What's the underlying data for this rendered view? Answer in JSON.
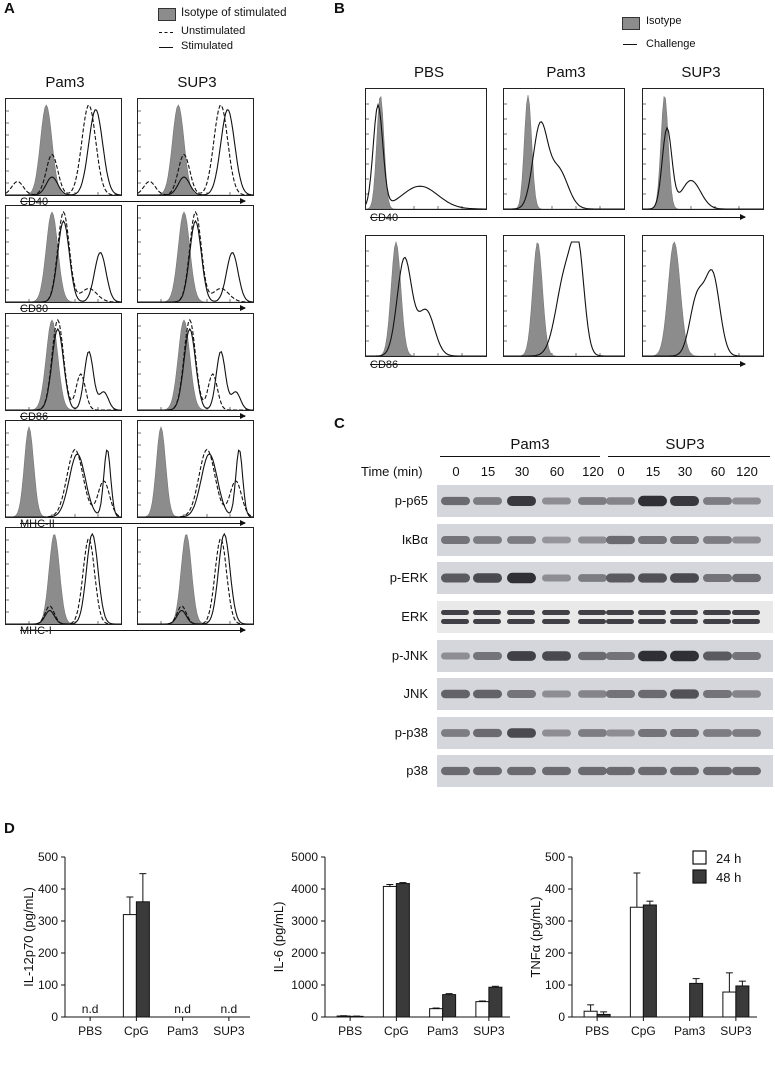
{
  "panel_letters": {
    "A": "A",
    "B": "B",
    "C": "C",
    "D": "D"
  },
  "panel_a": {
    "legend": {
      "isotype": "Isotype of stimulated",
      "unstimulated": "Unstimulated",
      "stimulated": "Stimulated"
    },
    "columns": [
      "Pam3",
      "SUP3"
    ],
    "markers": [
      "CD40",
      "CD80",
      "CD86",
      "MHC-II",
      "MHC-I"
    ]
  },
  "panel_b": {
    "legend": {
      "isotype": "Isotype",
      "challenge": "Challenge"
    },
    "columns": [
      "PBS",
      "Pam3",
      "SUP3"
    ],
    "markers": [
      "CD40",
      "CD86"
    ]
  },
  "panel_c": {
    "groups": [
      "Pam3",
      "SUP3"
    ],
    "time_label": "Time (min)",
    "times": [
      "0",
      "15",
      "30",
      "60",
      "120",
      "0",
      "15",
      "30",
      "60",
      "120"
    ],
    "lanes": [
      "p-p65",
      "IκBα",
      "p-ERK",
      "ERK",
      "p-JNK",
      "JNK",
      "p-p38",
      "p38"
    ]
  },
  "panel_d": {
    "legend": {
      "h24": "24 h",
      "h48": "48 h"
    },
    "nd_label": "n.d",
    "colors": {
      "h24": "#ffffff",
      "h48": "#3a3a3a"
    }
  },
  "chart_data": [
    {
      "type": "bar",
      "ylabel": "IL-12p70 (pg/mL)",
      "categories": [
        "PBS",
        "CpG",
        "Pam3",
        "SUP3"
      ],
      "ylim": [
        0,
        500
      ],
      "yticks": [
        0,
        100,
        200,
        300,
        400,
        500
      ],
      "series": [
        {
          "name": "24 h",
          "values": [
            null,
            320,
            null,
            null
          ],
          "errors": [
            null,
            55,
            null,
            null
          ]
        },
        {
          "name": "48 h",
          "values": [
            null,
            360,
            null,
            null
          ],
          "errors": [
            null,
            88,
            null,
            null
          ]
        }
      ],
      "not_detected": [
        "PBS",
        "Pam3",
        "SUP3"
      ]
    },
    {
      "type": "bar",
      "ylabel": "IL-6 (pg/mL)",
      "categories": [
        "PBS",
        "CpG",
        "Pam3",
        "SUP3"
      ],
      "ylim": [
        0,
        5000
      ],
      "yticks": [
        0,
        1000,
        2000,
        3000,
        4000,
        5000
      ],
      "series": [
        {
          "name": "24 h",
          "values": [
            30,
            4080,
            260,
            480
          ],
          "errors": [
            10,
            60,
            20,
            20
          ]
        },
        {
          "name": "48 h",
          "values": [
            20,
            4170,
            700,
            930
          ],
          "errors": [
            8,
            30,
            30,
            30
          ]
        }
      ]
    },
    {
      "type": "bar",
      "ylabel": "TNFα (pg/mL)",
      "categories": [
        "PBS",
        "CpG",
        "Pam3",
        "SUP3"
      ],
      "ylim": [
        0,
        500
      ],
      "yticks": [
        0,
        100,
        200,
        300,
        400,
        500
      ],
      "series": [
        {
          "name": "24 h",
          "values": [
            18,
            343,
            0,
            78
          ],
          "errors": [
            20,
            107,
            0,
            60
          ]
        },
        {
          "name": "48 h",
          "values": [
            8,
            350,
            105,
            97
          ],
          "errors": [
            8,
            12,
            15,
            15
          ]
        }
      ]
    }
  ]
}
